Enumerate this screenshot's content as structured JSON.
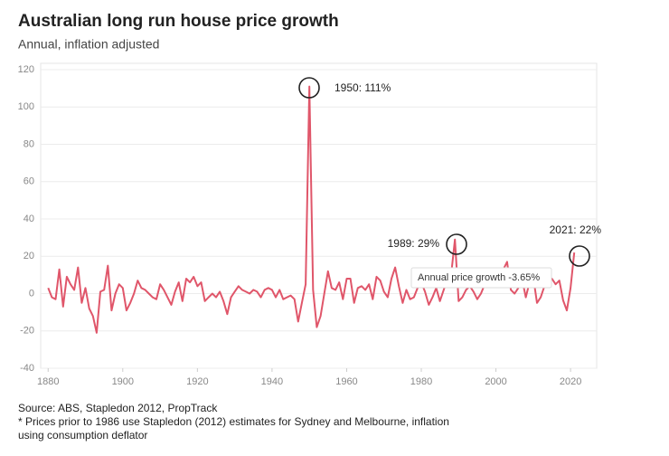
{
  "chart_data": {
    "type": "line",
    "title": "Australian long run house price growth",
    "subtitle": "Annual, inflation adjusted",
    "x": [
      1880,
      1881,
      1882,
      1883,
      1884,
      1885,
      1886,
      1887,
      1888,
      1889,
      1890,
      1891,
      1892,
      1893,
      1894,
      1895,
      1896,
      1897,
      1898,
      1899,
      1900,
      1901,
      1902,
      1903,
      1904,
      1905,
      1906,
      1907,
      1908,
      1909,
      1910,
      1911,
      1912,
      1913,
      1914,
      1915,
      1916,
      1917,
      1918,
      1919,
      1920,
      1921,
      1922,
      1923,
      1924,
      1925,
      1926,
      1927,
      1928,
      1929,
      1930,
      1931,
      1932,
      1933,
      1934,
      1935,
      1936,
      1937,
      1938,
      1939,
      1940,
      1941,
      1942,
      1943,
      1944,
      1945,
      1946,
      1947,
      1948,
      1949,
      1950,
      1951,
      1952,
      1953,
      1954,
      1955,
      1956,
      1957,
      1958,
      1959,
      1960,
      1961,
      1962,
      1963,
      1964,
      1965,
      1966,
      1967,
      1968,
      1969,
      1970,
      1971,
      1972,
      1973,
      1974,
      1975,
      1976,
      1977,
      1978,
      1979,
      1980,
      1981,
      1982,
      1983,
      1984,
      1985,
      1986,
      1987,
      1988,
      1989,
      1990,
      1991,
      1992,
      1993,
      1994,
      1995,
      1996,
      1997,
      1998,
      1999,
      2000,
      2001,
      2002,
      2003,
      2004,
      2005,
      2006,
      2007,
      2008,
      2009,
      2010,
      2011,
      2012,
      2013,
      2014,
      2015,
      2016,
      2017,
      2018,
      2019,
      2020,
      2021
    ],
    "values": [
      3,
      -2,
      -3,
      13,
      -7,
      9,
      5,
      2,
      14,
      -5,
      3,
      -8,
      -12,
      -21,
      1,
      2,
      15,
      -9,
      0,
      5,
      3,
      -9,
      -5,
      0,
      7,
      3,
      2,
      0,
      -2,
      -3,
      5,
      2,
      -2,
      -6,
      1,
      6,
      -4,
      8,
      6,
      9,
      4,
      6,
      -4,
      -2,
      0,
      -2,
      1,
      -4,
      -11,
      -2,
      1,
      4,
      2,
      1,
      0,
      2,
      1,
      -2,
      2,
      3,
      2,
      -2,
      2,
      -3,
      -2,
      -1,
      -3,
      -15,
      -5,
      5,
      111,
      2,
      -18,
      -12,
      0,
      12,
      3,
      2,
      6,
      -3,
      8,
      8,
      -5,
      3,
      4,
      2,
      5,
      -3,
      9,
      7,
      1,
      -2,
      8,
      14,
      4,
      -5,
      2,
      -3,
      -2,
      3,
      6,
      1,
      -6,
      -2,
      3,
      -4,
      2,
      8,
      10,
      29,
      -4,
      -2,
      2,
      4,
      1,
      -3,
      0,
      5,
      6,
      7,
      4,
      10,
      13,
      17,
      2,
      0,
      3,
      8,
      -2,
      6,
      9,
      -5,
      -2,
      4,
      7,
      8,
      5,
      7,
      -3.65,
      -9,
      3,
      22
    ],
    "color": "#e0566a",
    "xlim": [
      1878,
      2027
    ],
    "xticks": [
      1880,
      1900,
      1920,
      1940,
      1960,
      1980,
      2000,
      2020
    ],
    "ylim": [
      -40,
      120
    ],
    "yticks": [
      -40,
      -20,
      0,
      20,
      40,
      60,
      80,
      100,
      120
    ],
    "grid": true,
    "annotations": [
      "1950: 111%",
      "1989: 29%",
      "2021: 22%",
      "Annual price growth -3.65%"
    ],
    "notes": [
      "Source: ABS, Stapledon 2012, PropTrack",
      "* Prices prior to 1986 use Stapledon (2012) estimates for Sydney and Melbourne, inflation",
      "using consumption deflator"
    ]
  }
}
